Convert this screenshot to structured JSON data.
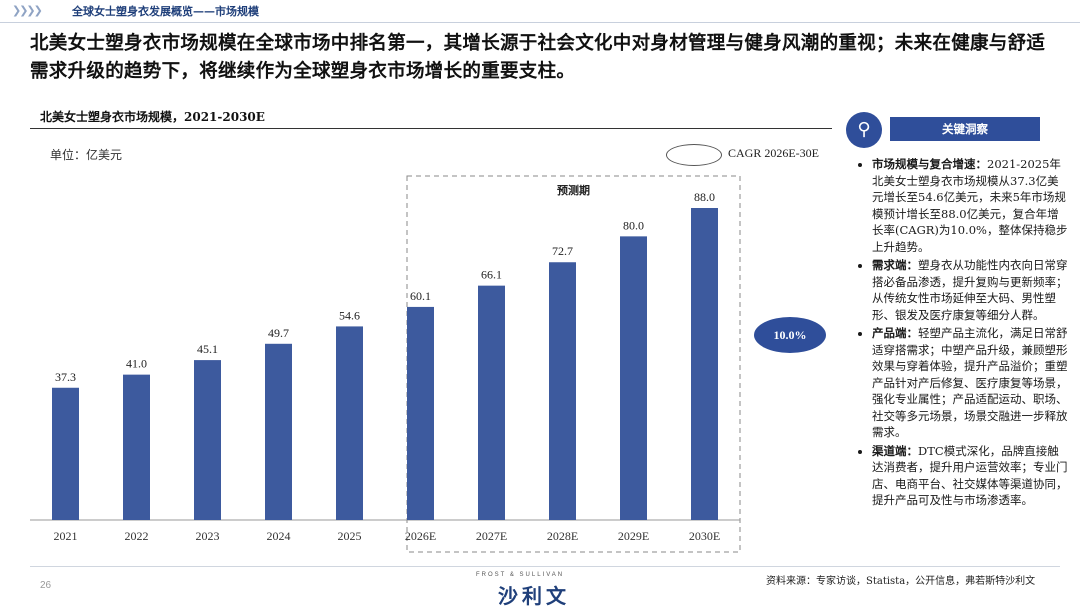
{
  "header": {
    "breadcrumb": "全球女士塑身衣发展概览——市场规模",
    "headline": "北美女士塑身衣市场规模在全球市场中排名第一，其增长源于社会文化中对身材管理与健身风潮的重视；未来在健康与舒适需求升级的趋势下，将继续作为全球塑身衣市场增长的重要支柱。"
  },
  "chart_data": {
    "type": "bar",
    "title": "北美女士塑身衣市场规模，2021-2030E",
    "unit": "单位：亿美元",
    "categories": [
      "2021",
      "2022",
      "2023",
      "2024",
      "2025",
      "2026E",
      "2027E",
      "2028E",
      "2029E",
      "2030E"
    ],
    "values": [
      37.3,
      41.0,
      45.1,
      49.7,
      54.6,
      60.1,
      66.1,
      72.7,
      80.0,
      88.0
    ],
    "value_labels": [
      "37.3",
      "41.0",
      "45.1",
      "49.7",
      "54.6",
      "60.1",
      "66.1",
      "72.7",
      "80.0",
      "88.0"
    ],
    "ylim": [
      0,
      88.0
    ],
    "bar_color": "#3d5a9e",
    "forecast_label": "预测期",
    "forecast_start_index": 5,
    "cagr_legend": "CAGR 2026E-30E",
    "cagr_value": "10.0%",
    "grid": false
  },
  "insights": {
    "title": "关键洞察",
    "items": [
      {
        "head": "市场规模与复合增速：",
        "body": "2021-2025年北美女士塑身衣市场规模从37.3亿美元增长至54.6亿美元，未来5年市场规模预计增长至88.0亿美元，复合年增长率(CAGR)为10.0%，整体保持稳步上升趋势。"
      },
      {
        "head": "需求端：",
        "body": "塑身衣从功能性内衣向日常穿搭必备品渗透，提升复购与更新频率；从传统女性市场延伸至大码、男性塑形、银发及医疗康复等细分人群。"
      },
      {
        "head": "产品端：",
        "body": "轻塑产品主流化，满足日常舒适穿搭需求；中塑产品升级，兼顾塑形效果与穿着体验，提升产品溢价；重塑产品针对产后修复、医疗康复等场景，强化专业属性；产品适配运动、职场、社交等多元场景，场景交融进一步释放需求。"
      },
      {
        "head": "渠道端：",
        "body": "DTC模式深化，品牌直接触达消费者，提升用户运营效率；专业门店、电商平台、社交媒体等渠道协同，提升产品可及性与市场渗透率。"
      }
    ]
  },
  "footer": {
    "page": "26",
    "logo_sub": "FROST & SULLIVAN",
    "logo": "沙利文",
    "source": "资料来源：专家访谈，Statista，公开信息，弗若斯特沙利文"
  }
}
